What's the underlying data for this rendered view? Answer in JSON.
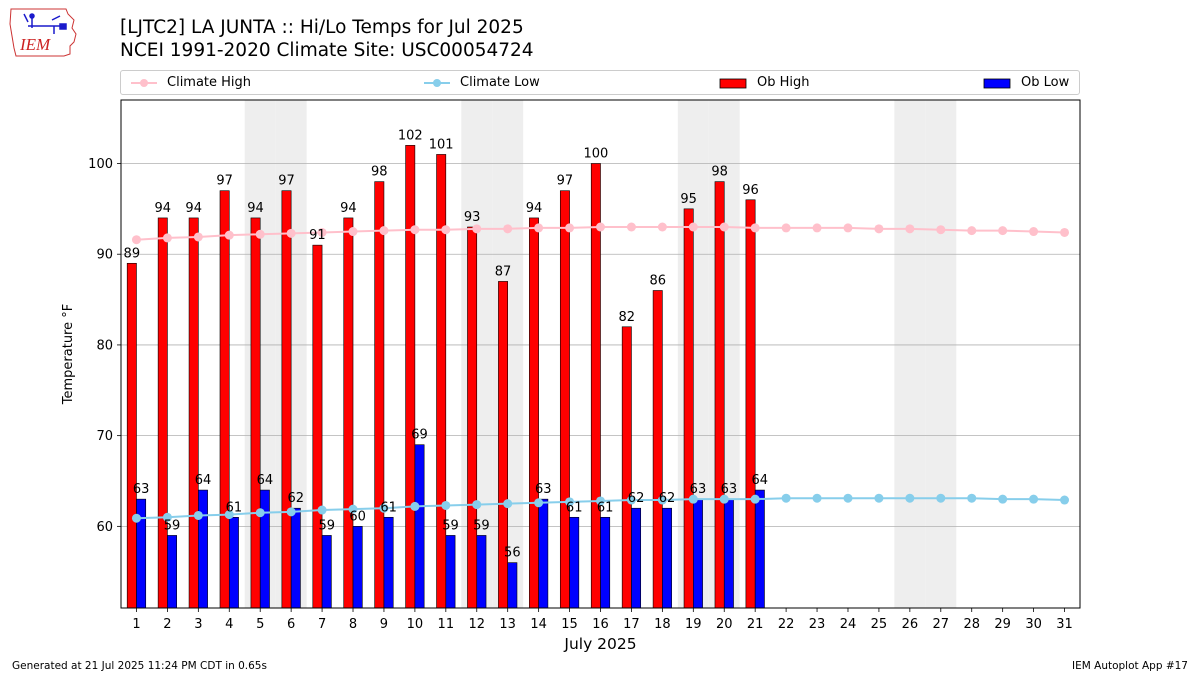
{
  "header": {
    "title_line1": "[LJTC2] LA JUNTA :: Hi/Lo Temps for Jul 2025",
    "title_line2": "NCEI 1991-2020 Climate Site: USC00054724",
    "logo_text": "IEM"
  },
  "legend": {
    "climate_high": "Climate High",
    "climate_low": "Climate Low",
    "ob_high": "Ob High",
    "ob_low": "Ob Low"
  },
  "colors": {
    "climate_high": "#ffc0cb",
    "climate_low": "#87ceeb",
    "ob_high": "#ff0000",
    "ob_low": "#0000ff",
    "weekend_shade": "#eeeeee",
    "grid": "#b0b0b0"
  },
  "footer": {
    "left": "Generated at 21 Jul 2025 11:24 PM CDT in 0.65s",
    "right": "IEM Autoplot App #17"
  },
  "chart_data": {
    "type": "bar",
    "xlabel": "July 2025",
    "ylabel": "Temperature °F",
    "ylim": [
      51,
      107
    ],
    "yticks": [
      60,
      70,
      80,
      90,
      100
    ],
    "grid": "horizontal",
    "legend_position": "top",
    "shaded_days": [
      5,
      6,
      12,
      13,
      19,
      20,
      26,
      27
    ],
    "days": [
      1,
      2,
      3,
      4,
      5,
      6,
      7,
      8,
      9,
      10,
      11,
      12,
      13,
      14,
      15,
      16,
      17,
      18,
      19,
      20,
      21,
      22,
      23,
      24,
      25,
      26,
      27,
      28,
      29,
      30,
      31
    ],
    "ob_high": [
      89,
      94,
      94,
      97,
      94,
      97,
      91,
      94,
      98,
      102,
      101,
      93,
      87,
      94,
      97,
      100,
      82,
      86,
      95,
      98,
      96
    ],
    "ob_low": [
      63,
      59,
      64,
      61,
      64,
      62,
      59,
      60,
      61,
      69,
      59,
      59,
      56,
      63,
      61,
      61,
      62,
      62,
      63,
      63,
      64
    ],
    "climate_high": [
      91.6,
      91.8,
      91.9,
      92.1,
      92.2,
      92.3,
      92.4,
      92.5,
      92.6,
      92.7,
      92.7,
      92.8,
      92.8,
      92.9,
      92.9,
      93.0,
      93.0,
      93.0,
      93.0,
      93.0,
      92.9,
      92.9,
      92.9,
      92.9,
      92.8,
      92.8,
      92.7,
      92.6,
      92.6,
      92.5,
      92.4
    ],
    "climate_low": [
      60.9,
      61.0,
      61.2,
      61.3,
      61.5,
      61.6,
      61.8,
      61.9,
      62.0,
      62.2,
      62.3,
      62.4,
      62.5,
      62.6,
      62.7,
      62.8,
      62.9,
      62.9,
      63.0,
      63.0,
      63.0,
      63.1,
      63.1,
      63.1,
      63.1,
      63.1,
      63.1,
      63.1,
      63.0,
      63.0,
      62.9
    ]
  }
}
